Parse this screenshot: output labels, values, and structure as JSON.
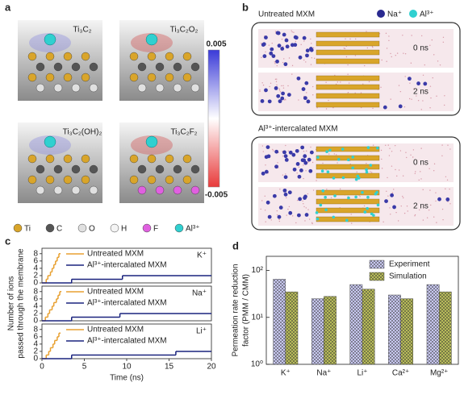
{
  "panel_a": {
    "label": "a",
    "structures": [
      "Ti₃C₂",
      "Ti₃C₂O₂",
      "Ti₃C₂(OH)₂",
      "Ti₃C₂F₂"
    ],
    "colorbar_ticks": [
      0.005,
      -0.005
    ],
    "legend": [
      "Ti",
      "C",
      "O",
      "H",
      "F",
      "Al³⁺"
    ]
  },
  "panel_b": {
    "label": "b",
    "legend": [
      "Na⁺",
      "Al³⁺"
    ],
    "systems": [
      {
        "title": "Untreated MXM",
        "times": [
          "0 ns",
          "2 ns"
        ]
      },
      {
        "title": "Al³⁺-intercalated MXM",
        "times": [
          "0 ns",
          "2 ns"
        ]
      }
    ]
  },
  "panel_c_label": "c",
  "panel_d_label": "d",
  "chart_data": [
    {
      "type": "step",
      "annotation": "K⁺",
      "xlim": [
        0,
        20
      ],
      "ylim": [
        0,
        9.5
      ],
      "yticks": [
        0,
        2,
        4,
        6,
        8
      ],
      "series": [
        {
          "name": "Untreated MXM",
          "color": "#e8a030",
          "x": [
            0,
            0.5,
            0.7,
            1.0,
            1.2,
            1.4,
            1.6,
            1.8,
            2.0,
            2.2
          ],
          "values": [
            0,
            1,
            2,
            3,
            4,
            5,
            6,
            7,
            8,
            8
          ]
        },
        {
          "name": "Al³⁺-intercalated MXM",
          "color": "#1a237e",
          "x": [
            0,
            3.5,
            9.5,
            20
          ],
          "values": [
            0,
            1,
            2,
            2
          ]
        }
      ]
    },
    {
      "type": "step",
      "annotation": "Na⁺",
      "xlim": [
        0,
        20
      ],
      "ylim": [
        0,
        9.5
      ],
      "yticks": [
        0,
        2,
        4,
        6,
        8
      ],
      "ylabel": [
        "Number of ions",
        "passed through the membrane"
      ],
      "series": [
        {
          "name": "Untreated MXM",
          "color": "#e8a030",
          "x": [
            0,
            0.4,
            0.7,
            0.9,
            1.2,
            1.4,
            1.7,
            1.9,
            2.1,
            2.3
          ],
          "values": [
            0,
            1,
            2,
            3,
            4,
            5,
            6,
            7,
            8,
            8
          ]
        },
        {
          "name": "Al³⁺-intercalated MXM",
          "color": "#1a237e",
          "x": [
            0,
            3.5,
            9.2,
            20
          ],
          "values": [
            0,
            1,
            2,
            2
          ]
        }
      ]
    },
    {
      "type": "step",
      "annotation": "Li⁺",
      "xlim": [
        0,
        20
      ],
      "ylim": [
        0,
        9.5
      ],
      "yticks": [
        0,
        2,
        4,
        6,
        8
      ],
      "xticks": [
        0,
        5,
        10,
        15,
        20
      ],
      "xlabel": "Time (ns)",
      "series": [
        {
          "name": "Untreated MXM",
          "color": "#e8a030",
          "x": [
            0,
            0.5,
            0.8,
            1.0,
            1.3,
            1.5,
            1.8,
            2.0,
            2.2
          ],
          "values": [
            0,
            1,
            2,
            3,
            4,
            5,
            6,
            7,
            7
          ]
        },
        {
          "name": "Al³⁺-intercalated MXM",
          "color": "#1a237e",
          "x": [
            0,
            3.5,
            15.8,
            20
          ],
          "values": [
            0,
            1,
            2,
            2
          ]
        }
      ]
    },
    {
      "type": "bar",
      "categories": [
        "K⁺",
        "Na⁺",
        "Li⁺",
        "Ca²⁺",
        "Mg²⁺"
      ],
      "ylabel": [
        "Permeation rate reduction",
        "factor (PMM / CMM)"
      ],
      "log_scale": true,
      "ylim": [
        1,
        200
      ],
      "yticks": [
        {
          "value": 1,
          "label": "10⁰"
        },
        {
          "value": 10,
          "label": "10¹"
        },
        {
          "value": 100,
          "label": "10²"
        }
      ],
      "legend": "upper right",
      "series": [
        {
          "name": "Experiment",
          "color": "#c8c8f0",
          "values": [
            65,
            25,
            50,
            30,
            50
          ]
        },
        {
          "name": "Simulation",
          "color": "#b8bc5a",
          "values": [
            35,
            28,
            40,
            25,
            35
          ]
        }
      ]
    }
  ]
}
